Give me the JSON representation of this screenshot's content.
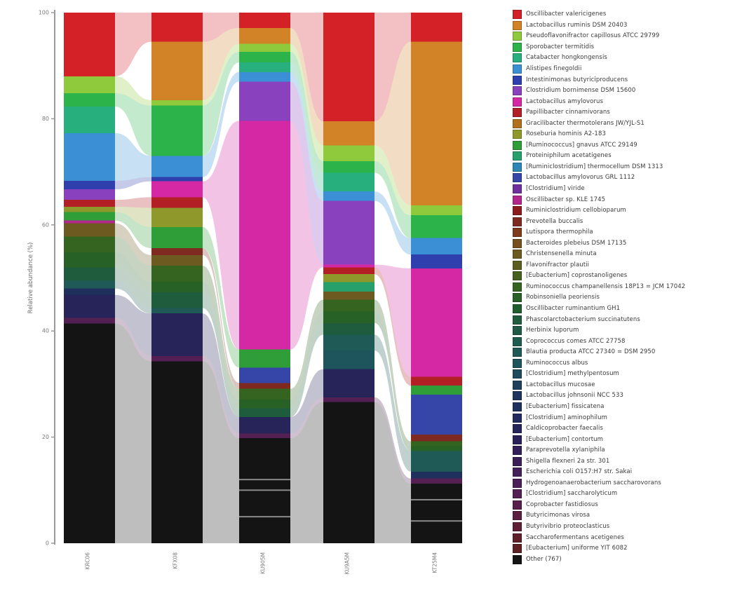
{
  "figure": {
    "y_axis_label": "Relative abundance (%)",
    "y_ticks": [
      0,
      20,
      40,
      60,
      80,
      100
    ]
  },
  "chart_data": {
    "type": "bar",
    "subtype": "stacked-alluvial",
    "title": "",
    "xlabel": "",
    "ylabel": "Relative abundance (%)",
    "ylim": [
      0,
      100
    ],
    "grid": false,
    "legend_position": "right",
    "categories": [
      "KRC06",
      "KFX08",
      "KU905M",
      "KU9A5M",
      "KT25M4"
    ],
    "taxa": [
      {
        "label": "Oscillibacter valericigenes",
        "color": "#d42027"
      },
      {
        "label": "Lactobacillus ruminis DSM 20403",
        "color": "#d28227"
      },
      {
        "label": "Pseudoflavonifractor capillosus ATCC 29799",
        "color": "#8fc93c"
      },
      {
        "label": "Sporobacter termitidis",
        "color": "#2cb34a"
      },
      {
        "label": "Catabacter hongkongensis",
        "color": "#27b07e"
      },
      {
        "label": "Alistipes finegoldii",
        "color": "#3b8fd4"
      },
      {
        "label": "Intestinimonas butyriciproducens",
        "color": "#2f3fae"
      },
      {
        "label": "Clostridium bornimense DSM 15600",
        "color": "#8a41bd"
      },
      {
        "label": "Lactobacillus amylovorus",
        "color": "#d428a4"
      },
      {
        "label": "Papillibacter cinnamivorans",
        "color": "#b22025"
      },
      {
        "label": "Gracilibacter thermotolerans JW/YJL-S1",
        "color": "#b0701f"
      },
      {
        "label": "Roseburia hominis A2-183",
        "color": "#8f992b"
      },
      {
        "label": "[Ruminococcus] gnavus ATCC 29149",
        "color": "#2f9e38"
      },
      {
        "label": "Proteiniphilum acetatigenes",
        "color": "#27a06b"
      },
      {
        "label": "[Ruminiclostridium] thermocellum DSM 1313",
        "color": "#2e86b5"
      },
      {
        "label": "Lactobacillus amylovorus GRL 1112",
        "color": "#3545a8"
      },
      {
        "label": "[Clostridium] viride",
        "color": "#6f2f9e"
      },
      {
        "label": "Oscillibacter sp. KLE 1745",
        "color": "#b3268c"
      },
      {
        "label": "Ruminiclostridium cellobioparum",
        "color": "#8c1b1e"
      },
      {
        "label": "Prevotella buccalis",
        "color": "#7e2a20"
      },
      {
        "label": "Lutispora thermophila",
        "color": "#7e3a1d"
      },
      {
        "label": "Bacteroides plebeius DSM 17135",
        "color": "#75501e"
      },
      {
        "label": "Christensenella minuta",
        "color": "#6d5a20"
      },
      {
        "label": "Flavonifractor plautii",
        "color": "#5a5e20"
      },
      {
        "label": "[Eubacterium] coprostanoligenes",
        "color": "#45611f"
      },
      {
        "label": "Ruminococcus champanellensis 18P13 = JCM 17042",
        "color": "#356420"
      },
      {
        "label": "Robinsoniella peoriensis",
        "color": "#286126"
      },
      {
        "label": "Oscillibacter ruminantium GH1",
        "color": "#215e2f"
      },
      {
        "label": "Phascolarctobacterium succinatutens",
        "color": "#1f5c3e"
      },
      {
        "label": "Herbinix luporum",
        "color": "#205a47"
      },
      {
        "label": "Coprococcus comes ATCC 27758",
        "color": "#1f5c50"
      },
      {
        "label": "Blautia producta ATCC 27340 = DSM 2950",
        "color": "#1f5a57"
      },
      {
        "label": "Ruminococcus albus",
        "color": "#1e555c"
      },
      {
        "label": "[Clostridium] methylpentosum",
        "color": "#1e4b5c"
      },
      {
        "label": "Lactobacillus mucosae",
        "color": "#1f405c"
      },
      {
        "label": "Lactobacillus johnsonii NCC 533",
        "color": "#1f355e"
      },
      {
        "label": "[Eubacterium] fissicatena",
        "color": "#20305c"
      },
      {
        "label": "[Clostridium] aminophilum",
        "color": "#232a5e"
      },
      {
        "label": "Caldicoprobacter faecalis",
        "color": "#262459"
      },
      {
        "label": "[Eubacterium] contortum",
        "color": "#2a2158"
      },
      {
        "label": "Paraprevotella xylaniphila",
        "color": "#332058"
      },
      {
        "label": "Shigella flexneri 2a str. 301",
        "color": "#3a2057"
      },
      {
        "label": "Escherichia coli O157:H7 str. Sakai",
        "color": "#44205a"
      },
      {
        "label": "Hydrogenoanaerobacterium saccharovorans",
        "color": "#4d1f58"
      },
      {
        "label": "[Clostridium] saccharolyticum",
        "color": "#541f52"
      },
      {
        "label": "Coprobacter fastidiosus",
        "color": "#581f4a"
      },
      {
        "label": "Butyricimonas virosa",
        "color": "#5c1f40"
      },
      {
        "label": "Butyrivibrio proteoclasticus",
        "color": "#5e1f33"
      },
      {
        "label": "Saccharofermentans acetigenes",
        "color": "#5e1f28"
      },
      {
        "label": "[Eubacterium] uniforme YIT 6082",
        "color": "#5e2022"
      },
      {
        "label": "Other (767)",
        "color": "#141414"
      }
    ],
    "values": [
      [
        12.0,
        5.5,
        2.9,
        20.5,
        5.5
      ],
      [
        0,
        11.0,
        3.0,
        4.5,
        30.8
      ],
      [
        3.2,
        1.0,
        1.5,
        3.0,
        1.9
      ],
      [
        2.5,
        9.5,
        2.0,
        2.2,
        4.3
      ],
      [
        5.0,
        0,
        1.8,
        3.5,
        0
      ],
      [
        9.0,
        4.0,
        1.8,
        1.8,
        3.1
      ],
      [
        1.6,
        0.8,
        0,
        0,
        2.6
      ],
      [
        2.0,
        0,
        7.4,
        12.0,
        0
      ],
      [
        0,
        3.0,
        43.1,
        0.5,
        20.4
      ],
      [
        1.3,
        2.0,
        0,
        1.3,
        1.7
      ],
      [
        0,
        0,
        0,
        0,
        0
      ],
      [
        1.0,
        3.6,
        0,
        1.5,
        0
      ],
      [
        1.6,
        4.0,
        3.4,
        0,
        1.7
      ],
      [
        0,
        0,
        0,
        1.8,
        0
      ],
      [
        0,
        0,
        0,
        0,
        0
      ],
      [
        0,
        0,
        2.9,
        0,
        7.5
      ],
      [
        0,
        0,
        0,
        0,
        0
      ],
      [
        0.5,
        0,
        0,
        0,
        0
      ],
      [
        0,
        0,
        0,
        0,
        0
      ],
      [
        0,
        1.3,
        1.1,
        0,
        1.3
      ],
      [
        0,
        0,
        0,
        0,
        0
      ],
      [
        0,
        0,
        0,
        0,
        0
      ],
      [
        2.5,
        2.0,
        0,
        1.5,
        0
      ],
      [
        0,
        0,
        0,
        0,
        0
      ],
      [
        0,
        0,
        0,
        0,
        0
      ],
      [
        3.0,
        3.0,
        2.0,
        2.2,
        0.9
      ],
      [
        2.8,
        2.0,
        1.7,
        2.2,
        0.9
      ],
      [
        0,
        0,
        0,
        0,
        0
      ],
      [
        2.5,
        3.0,
        1.6,
        2.2,
        0
      ],
      [
        0,
        0,
        0,
        0,
        0
      ],
      [
        0,
        0,
        0,
        0,
        0
      ],
      [
        1.5,
        1.0,
        0,
        3.0,
        3.9
      ],
      [
        0,
        0,
        0,
        3.5,
        0
      ],
      [
        0,
        0,
        0,
        0,
        0
      ],
      [
        0,
        0,
        0,
        0,
        0
      ],
      [
        0,
        0,
        0,
        0,
        0
      ],
      [
        1.2,
        0,
        0,
        0,
        1.3
      ],
      [
        0,
        0,
        0,
        0,
        0
      ],
      [
        4.3,
        8.0,
        3.1,
        5.3,
        0
      ],
      [
        0,
        0,
        0,
        0,
        0
      ],
      [
        0,
        0,
        0,
        0,
        0
      ],
      [
        0,
        0,
        0,
        0,
        0
      ],
      [
        0,
        0,
        0,
        0,
        0
      ],
      [
        0,
        0,
        0,
        0,
        0
      ],
      [
        1.1,
        1.0,
        0.9,
        0.9,
        1.0
      ],
      [
        0,
        0,
        0,
        0,
        0
      ],
      [
        0,
        0,
        0,
        0,
        0
      ],
      [
        0,
        0,
        0,
        0,
        0
      ],
      [
        0,
        0,
        0,
        0,
        0
      ],
      [
        0,
        0,
        0,
        0,
        0
      ],
      [
        41.4,
        34.3,
        19.8,
        26.6,
        11.2
      ]
    ],
    "other_separators": [
      {
        "bar": 2,
        "at_percent": [
          12.0,
          10.0,
          5.0
        ]
      },
      {
        "bar": 4,
        "at_percent": [
          8.2,
          4.2
        ]
      }
    ]
  }
}
